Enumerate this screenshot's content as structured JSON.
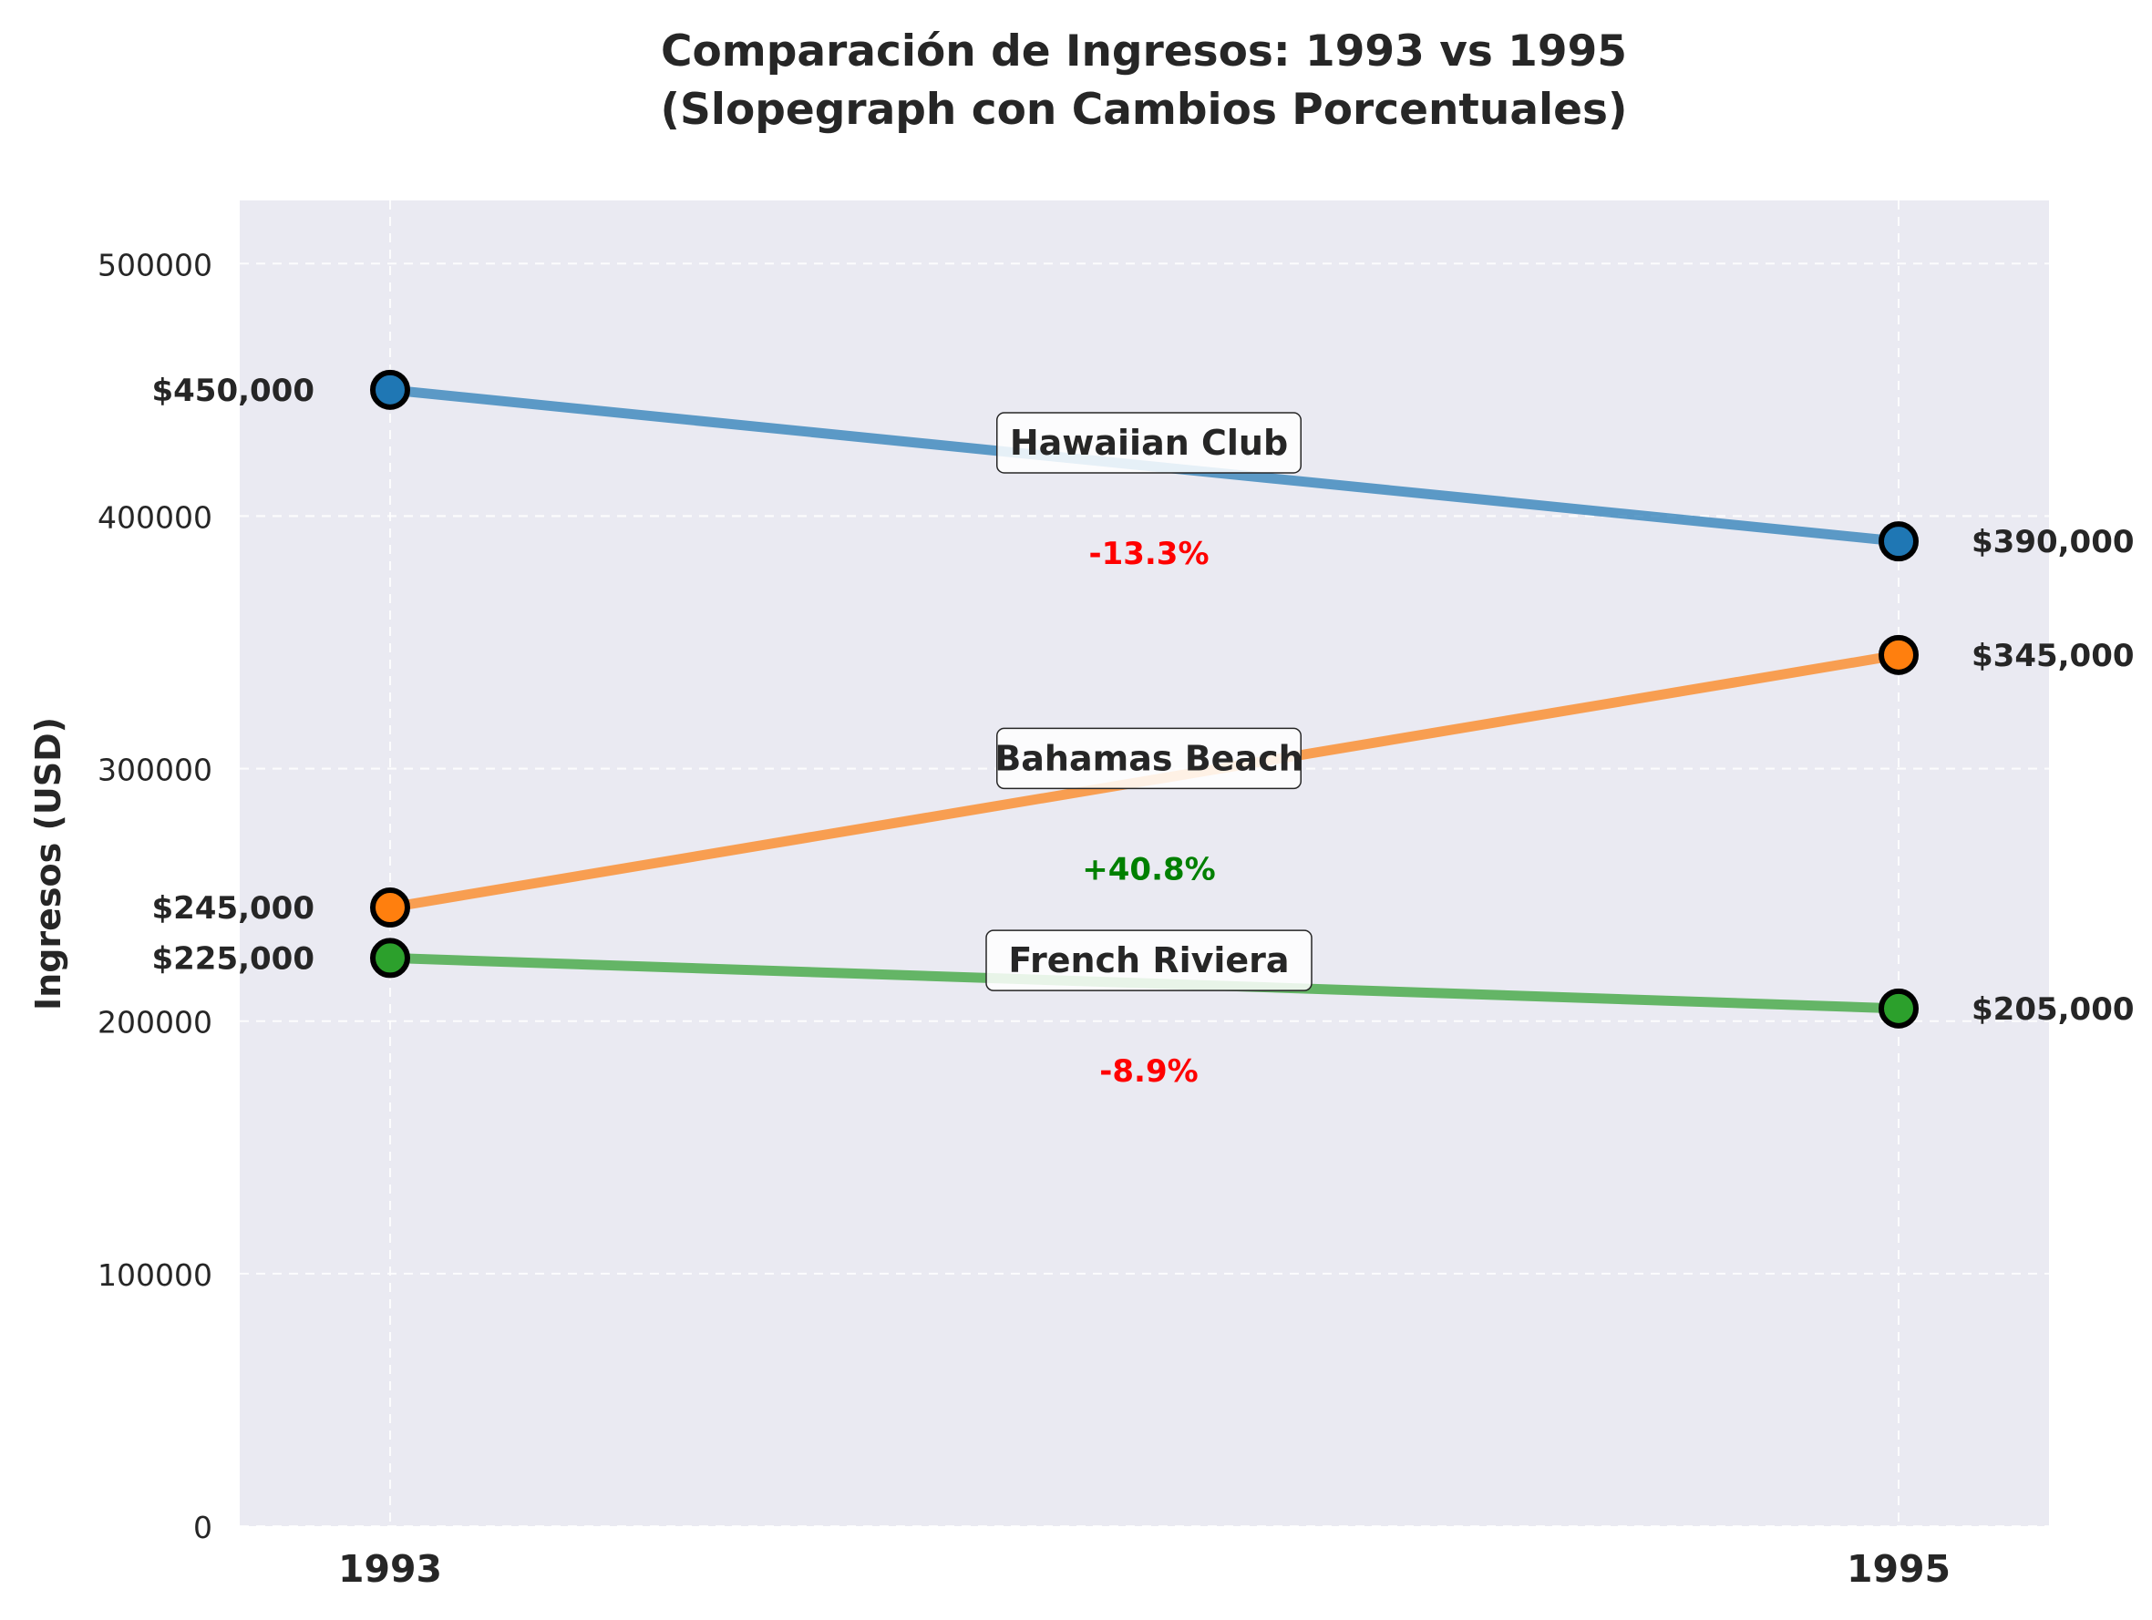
{
  "chart_data": {
    "type": "line",
    "title_line1": "Comparación de Ingresos: 1993 vs 1995",
    "title_line2": "(Slopegraph con Cambios Porcentuales)",
    "xlabel": "",
    "ylabel": "Ingresos (USD)",
    "categories": [
      "1993",
      "1995"
    ],
    "ylim": [
      0,
      525000
    ],
    "yticks": [
      0,
      100000,
      200000,
      300000,
      400000,
      500000
    ],
    "ytick_labels": [
      "0",
      "100000",
      "200000",
      "300000",
      "400000",
      "500000"
    ],
    "grid": true,
    "background": "#eaeaf2",
    "series": [
      {
        "name": "Hawaiian Club",
        "values": [
          450000,
          390000
        ],
        "value_labels": [
          "$450,000",
          "$390,000"
        ],
        "change": "-13.3%",
        "change_color": "#ff0000",
        "color": "#1f77b4"
      },
      {
        "name": "Bahamas Beach",
        "values": [
          245000,
          345000
        ],
        "value_labels": [
          "$245,000",
          "$345,000"
        ],
        "change": "+40.8%",
        "change_color": "#008000",
        "color": "#ff7f0e"
      },
      {
        "name": "French Riviera",
        "values": [
          225000,
          205000
        ],
        "value_labels": [
          "$225,000",
          "$205,000"
        ],
        "change": "-8.9%",
        "change_color": "#ff0000",
        "color": "#2ca02c"
      }
    ]
  }
}
